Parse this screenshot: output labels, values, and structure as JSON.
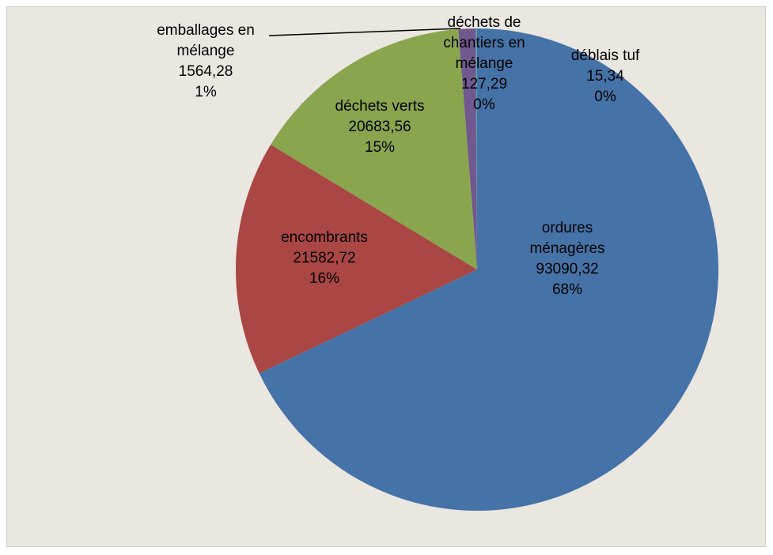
{
  "chart_data": {
    "type": "pie",
    "categories": [
      "ordures ménagères",
      "encombrants",
      "déchets verts",
      "emballages en mélange",
      "déchets de chantiers en mélange",
      "déblais tuf"
    ],
    "values": [
      93090.32,
      21582.72,
      20683.56,
      1564.28,
      127.29,
      15.34
    ],
    "value_labels": [
      "93090,32",
      "21582,72",
      "20683,56",
      "1564,28",
      "127,29",
      "15,34"
    ],
    "percent_labels": [
      "68%",
      "16%",
      "15%",
      "1%",
      "0%",
      "0%"
    ],
    "colors": [
      "#4572a7",
      "#aa4643",
      "#89a54e",
      "#71588f",
      "#4198af",
      "#db843d"
    ]
  }
}
